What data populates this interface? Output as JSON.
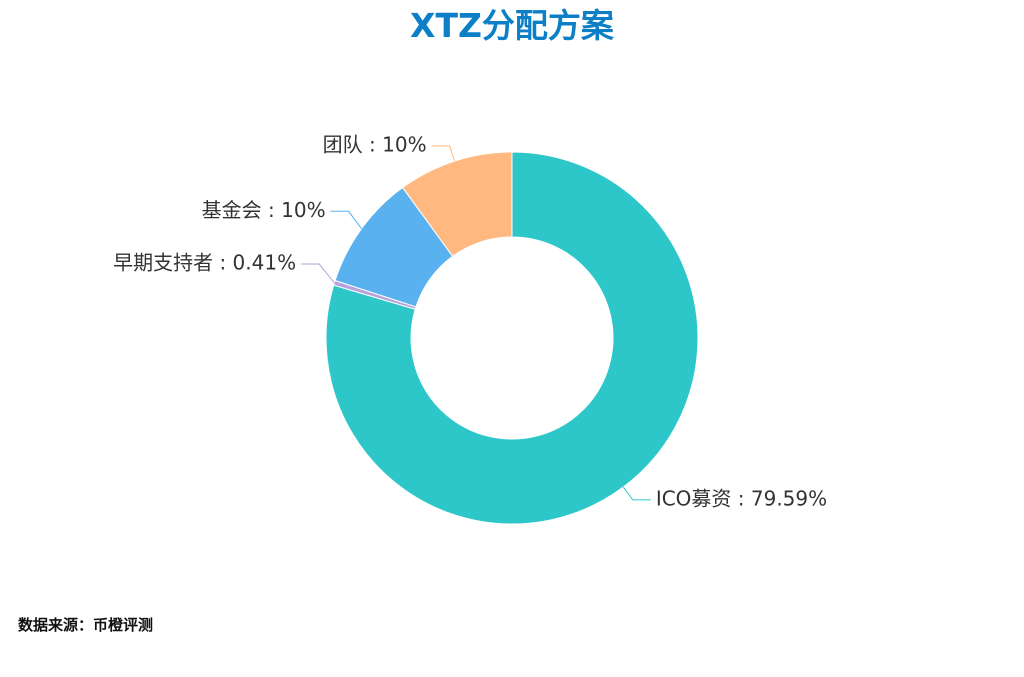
{
  "chart_data": {
    "type": "pie",
    "subtype": "donut",
    "title": "XTZ分配方案",
    "slices": [
      {
        "name": "ICO募资",
        "value": 79.59,
        "label": "ICO募资 : 79.59%",
        "color": "#2ec7c9"
      },
      {
        "name": "早期支持者",
        "value": 0.41,
        "label": "早期支持者 : 0.41%",
        "color": "#b6a2de"
      },
      {
        "name": "基金会",
        "value": 10,
        "label": "基金会 : 10%",
        "color": "#5ab1ef"
      },
      {
        "name": "团队",
        "value": 10,
        "label": "团队 : 10%",
        "color": "#ffb980"
      }
    ],
    "legend": "none"
  },
  "source": {
    "text": "数据来源：币橙评测"
  },
  "colors": {
    "title": "#0d7fc7"
  }
}
